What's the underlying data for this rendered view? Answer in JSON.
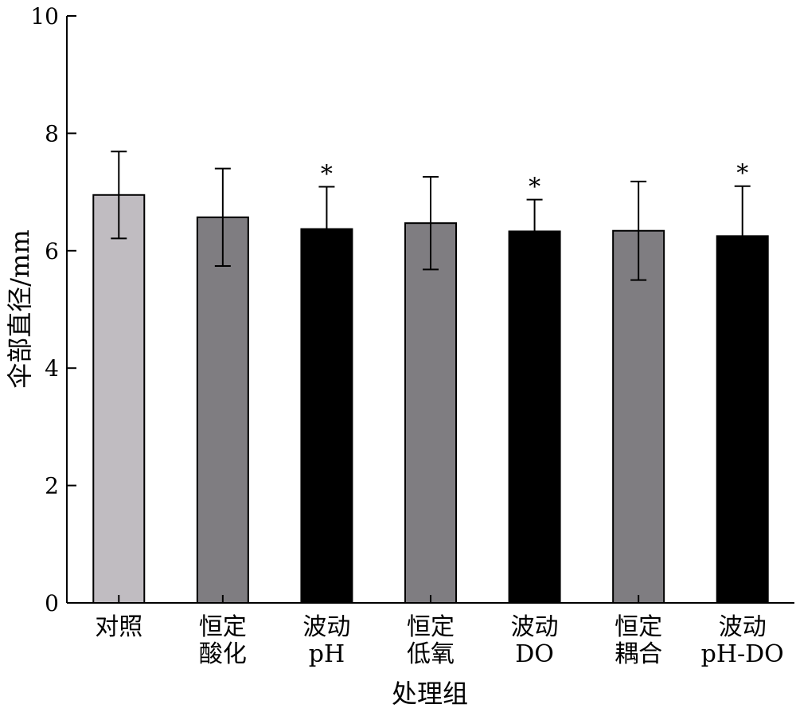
{
  "chart_data": {
    "type": "bar",
    "title": "",
    "xlabel": "处理组",
    "ylabel": "伞部直径/mm",
    "ylim": [
      0,
      10
    ],
    "yticks": [
      0,
      2,
      4,
      6,
      8,
      10
    ],
    "grid": false,
    "categories": [
      [
        "对照"
      ],
      [
        "恒定",
        "酸化"
      ],
      [
        "波动",
        "pH"
      ],
      [
        "恒定",
        "低氧"
      ],
      [
        "波动",
        "DO"
      ],
      [
        "恒定",
        "耦合"
      ],
      [
        "波动",
        "pH-DO"
      ]
    ],
    "values": [
      6.95,
      6.57,
      6.37,
      6.47,
      6.33,
      6.34,
      6.25
    ],
    "errors": [
      0.74,
      0.83,
      0.72,
      0.79,
      0.54,
      0.84,
      0.85
    ],
    "significance": [
      "",
      "",
      "*",
      "",
      "*",
      "",
      "*"
    ],
    "colors": [
      "#c0bcc1",
      "#7f7d81",
      "#000000",
      "#7f7d81",
      "#000000",
      "#7f7d81",
      "#000000"
    ]
  }
}
